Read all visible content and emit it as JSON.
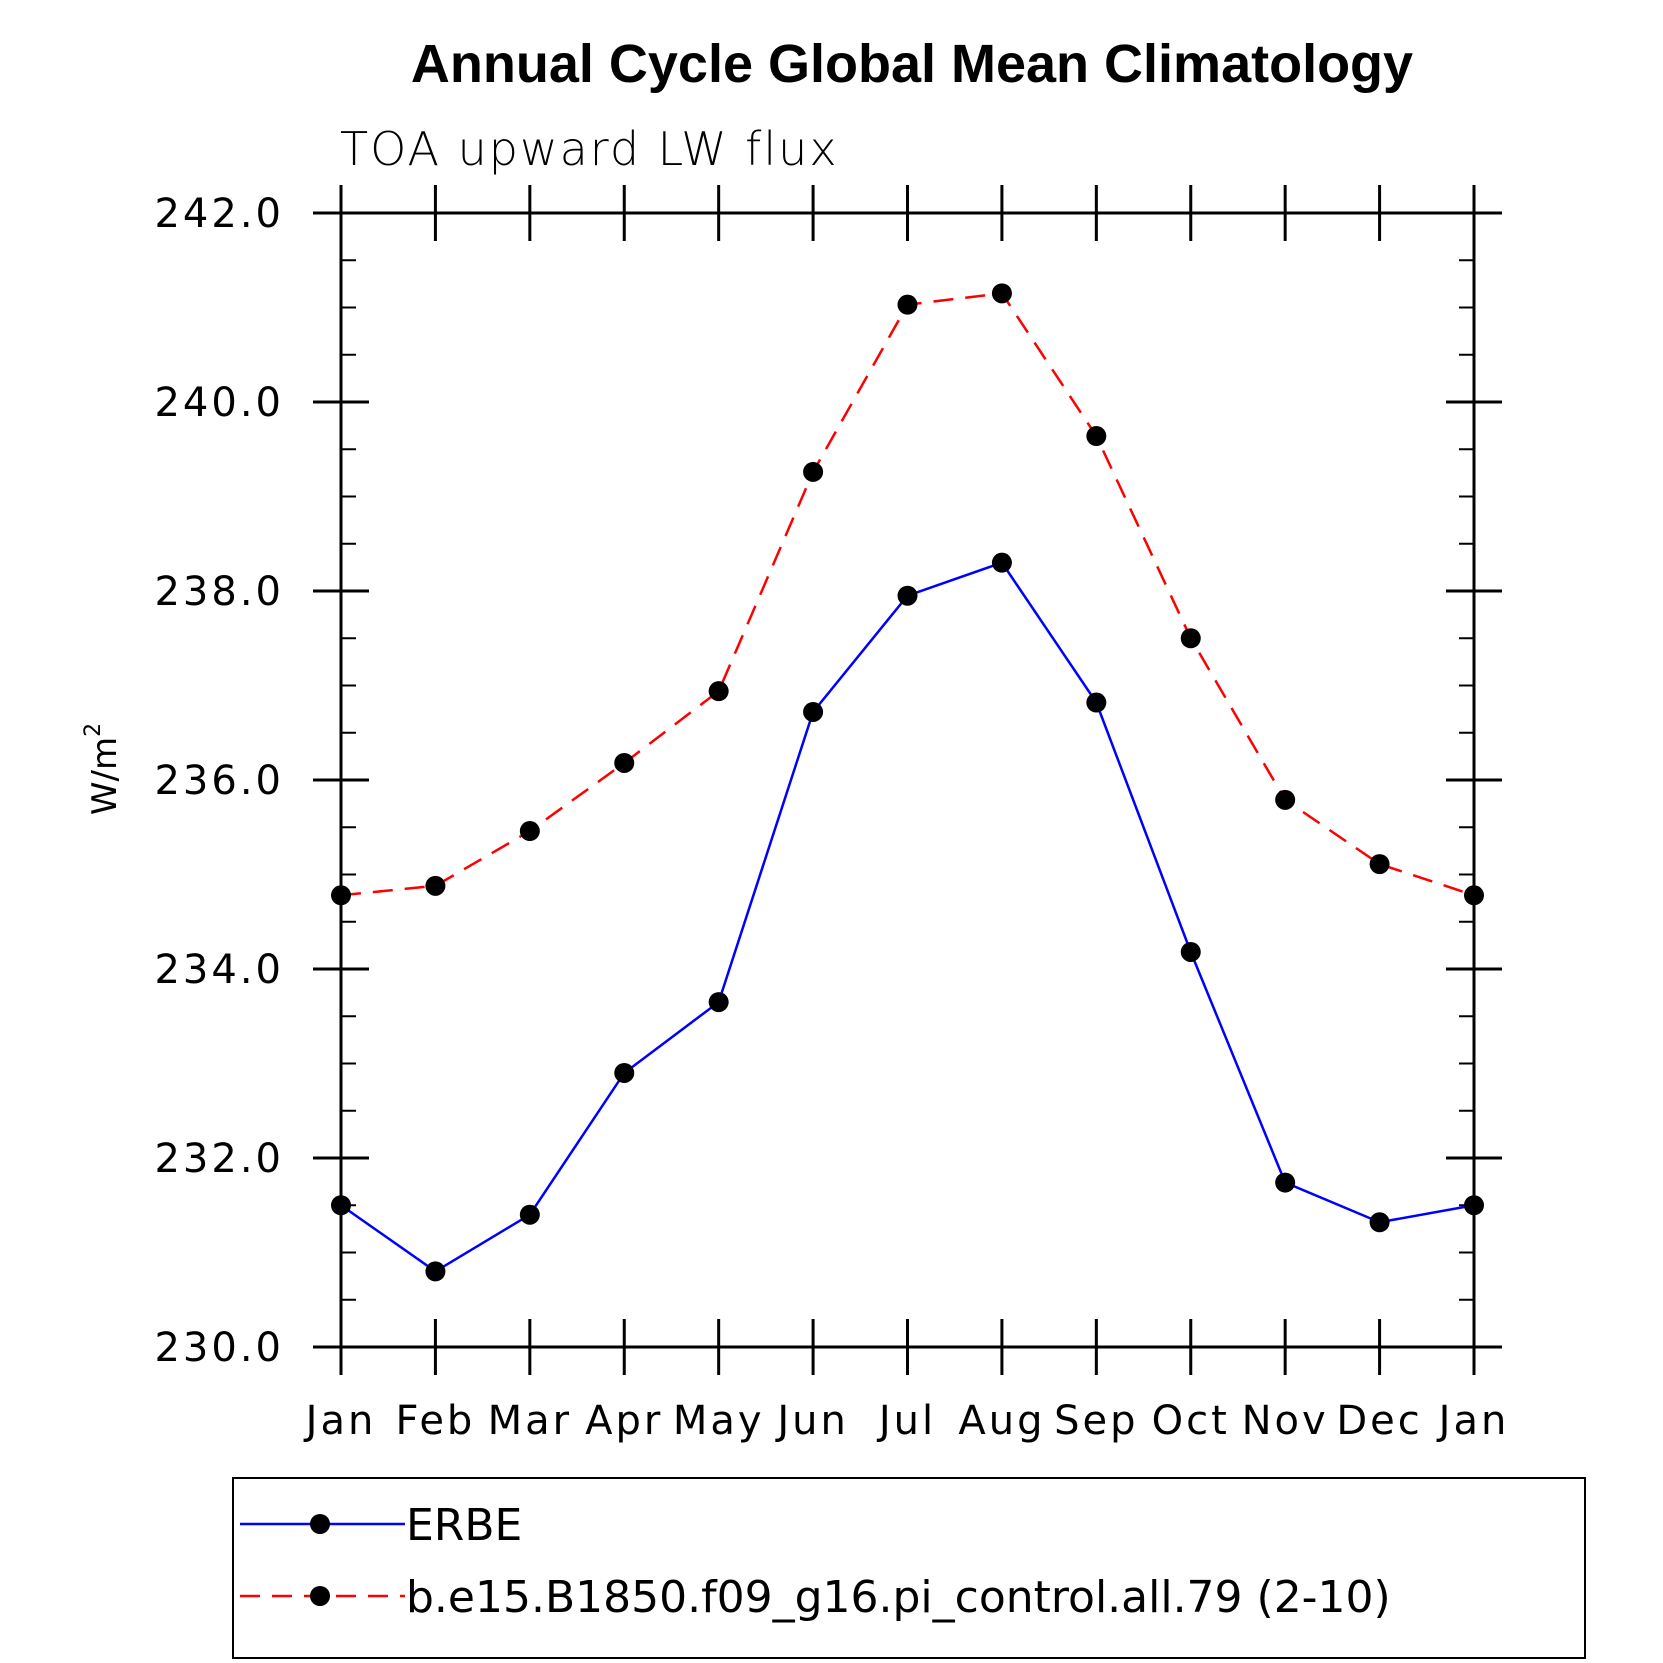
{
  "chart_data": {
    "type": "line",
    "title": "Annual Cycle Global Mean Climatology",
    "subtitle": "TOA upward LW flux",
    "xlabel": "",
    "ylabel_base": "W/m",
    "ylabel_superscript": "2",
    "categories": [
      "Jan",
      "Feb",
      "Mar",
      "Apr",
      "May",
      "Jun",
      "Jul",
      "Aug",
      "Sep",
      "Oct",
      "Nov",
      "Dec",
      "Jan"
    ],
    "ylim": [
      230.0,
      242.0
    ],
    "yticks": [
      "230.0",
      "232.0",
      "234.0",
      "236.0",
      "238.0",
      "240.0",
      "242.0"
    ],
    "grid": false,
    "legend_position": "bottom",
    "series": [
      {
        "name": "ERBE",
        "color": "#0000ff",
        "dashed": false,
        "marker": "filled-circle",
        "values": [
          231.5,
          230.8,
          231.4,
          232.9,
          233.65,
          236.72,
          237.95,
          238.3,
          236.82,
          234.18,
          231.74,
          231.32,
          231.5
        ]
      },
      {
        "name": "b.e15.B1850.f09_g16.pi_control.all.79 (2-10)",
        "color": "#ff0000",
        "dashed": true,
        "marker": "filled-circle",
        "values": [
          234.78,
          234.88,
          235.46,
          236.18,
          236.94,
          239.26,
          241.03,
          241.15,
          239.64,
          237.5,
          235.79,
          235.11,
          234.78
        ]
      }
    ]
  }
}
